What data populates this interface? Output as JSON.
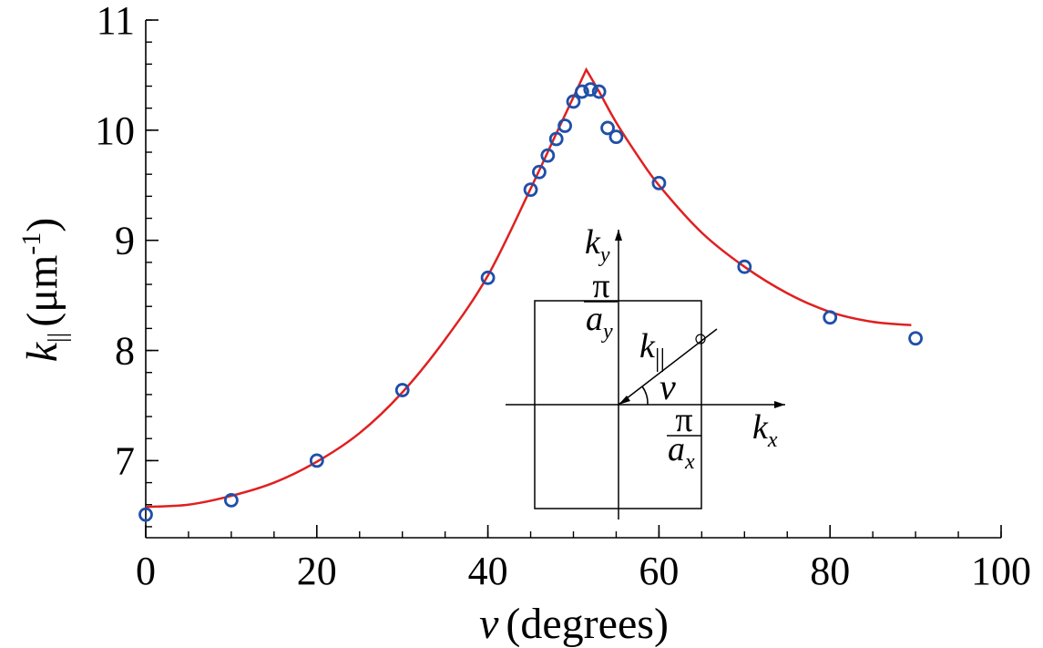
{
  "chart_data": {
    "type": "scatter",
    "title": "",
    "xlabel": {
      "symbol": "ν",
      "text": "(degrees)"
    },
    "ylabel": {
      "symbol": "k",
      "subscript": "||",
      "text": "(μm",
      "superscript": "-1",
      "close": ")"
    },
    "xlim": [
      0,
      100
    ],
    "ylim": [
      6.3,
      11.0
    ],
    "xticks": [
      "0",
      "20",
      "40",
      "60",
      "80",
      "100"
    ],
    "yticks": [
      "7",
      "8",
      "9",
      "10",
      "11"
    ],
    "x_tick_values": [
      0,
      20,
      40,
      60,
      80,
      100
    ],
    "y_tick_values": [
      7,
      8,
      9,
      10,
      11
    ],
    "x_minor_step": 5,
    "y_minor_step": 0.2,
    "grid": false,
    "series": [
      {
        "kind": "points",
        "marker": "open-circle",
        "color": "#1f4fa8",
        "x": [
          0,
          10,
          20,
          30,
          40,
          45,
          46,
          47,
          48,
          49,
          50,
          51,
          52,
          53,
          54,
          55,
          60,
          70,
          80,
          90
        ],
        "y": [
          6.51,
          6.64,
          7.0,
          7.64,
          8.66,
          9.46,
          9.62,
          9.77,
          9.92,
          10.04,
          10.26,
          10.35,
          10.37,
          10.35,
          10.02,
          9.94,
          9.52,
          8.76,
          8.3,
          8.11
        ]
      },
      {
        "kind": "fit-curve",
        "color": "#e02020",
        "x": [
          0,
          5,
          10,
          15,
          20,
          25,
          30,
          35,
          40,
          45,
          48,
          50,
          51.5,
          53,
          55,
          57.5,
          60,
          65,
          70,
          75,
          80,
          85,
          89.5
        ],
        "y": [
          6.58,
          6.6,
          6.68,
          6.8,
          6.99,
          7.25,
          7.62,
          8.1,
          8.68,
          9.47,
          9.97,
          10.3,
          10.55,
          10.35,
          10.07,
          9.77,
          9.5,
          9.07,
          8.76,
          8.52,
          8.35,
          8.26,
          8.23
        ]
      }
    ],
    "inset": {
      "ky_label": "k",
      "ky_sub": "y",
      "kx_label": "k",
      "kx_sub": "x",
      "pi_symbol": "π",
      "ay_label": "a",
      "ay_sub": "y",
      "ax_label": "a",
      "ax_sub": "x",
      "kpar_label": "k",
      "kpar_sub": "||",
      "angle_label": "ν"
    }
  },
  "colors": {
    "points": "#1f4fa8",
    "fit": "#e02020",
    "axes": "#000000"
  }
}
